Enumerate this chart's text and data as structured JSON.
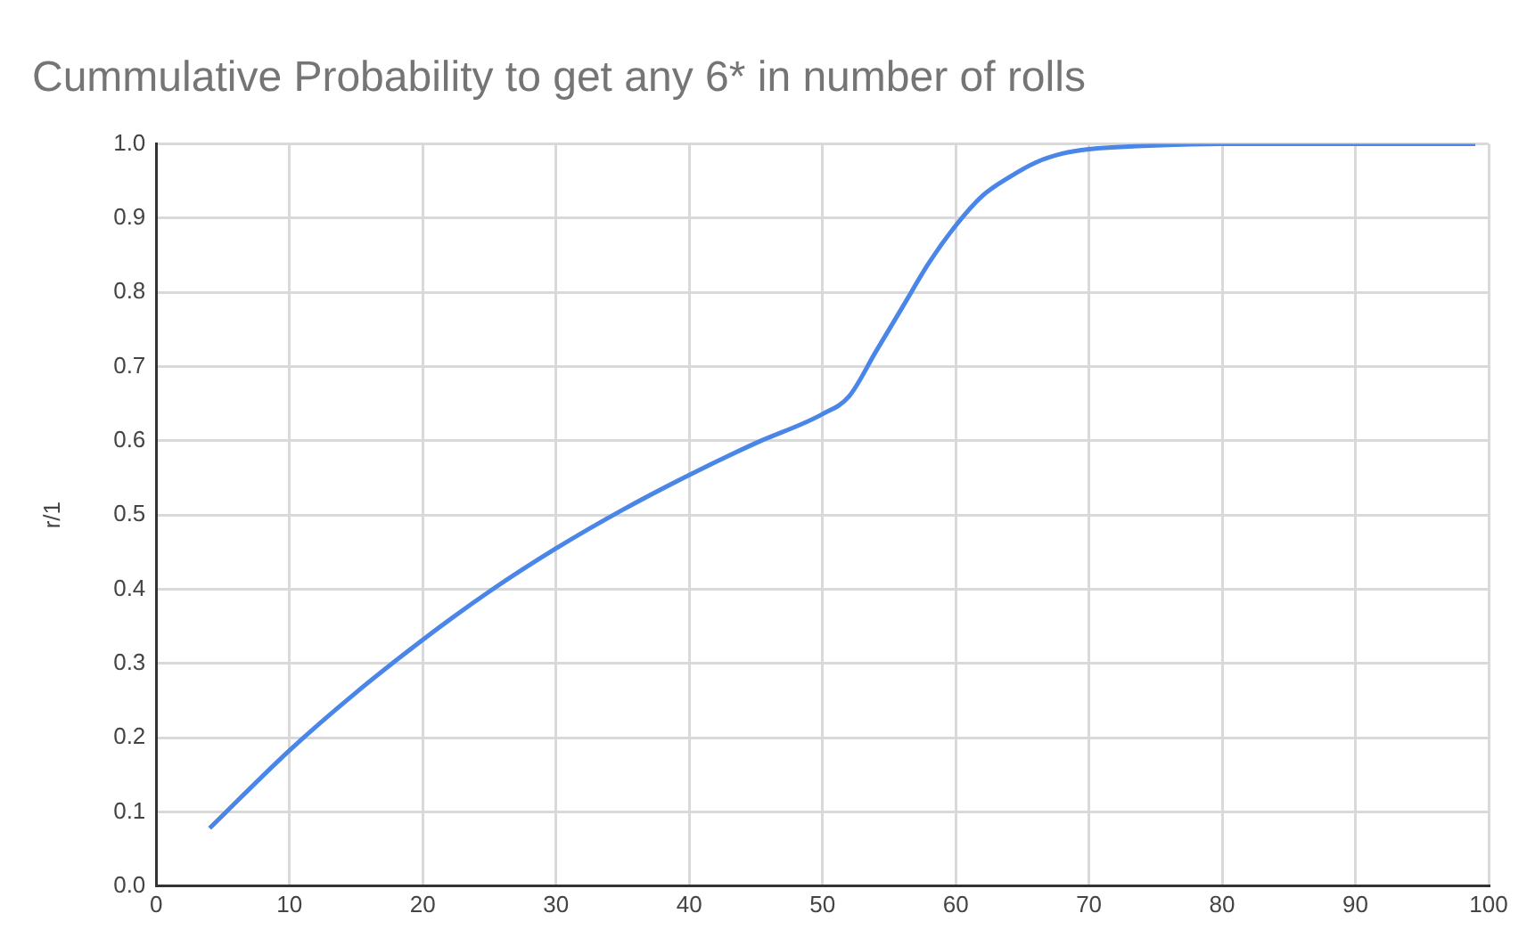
{
  "chart_data": {
    "type": "line",
    "title": "Cummulative Probability to get any 6* in number of rolls",
    "ylabel": "r/1",
    "x": [
      4,
      10,
      15,
      20,
      25,
      30,
      35,
      40,
      45,
      50,
      52,
      54,
      56,
      58,
      60,
      62,
      64,
      66,
      68,
      70,
      75,
      80,
      90,
      99
    ],
    "series": [
      {
        "color": "#4a86e8",
        "values": [
          0.078,
          0.183,
          0.261,
          0.332,
          0.397,
          0.455,
          0.507,
          0.554,
          0.597,
          0.636,
          0.66,
          0.72,
          0.78,
          0.84,
          0.89,
          0.93,
          0.955,
          0.975,
          0.987,
          0.993,
          0.998,
          1.0,
          1.0,
          1.0
        ]
      }
    ],
    "xlim": [
      0,
      100
    ],
    "xticks": [
      0,
      10,
      20,
      30,
      40,
      50,
      60,
      70,
      80,
      90,
      100
    ],
    "ylim": [
      0,
      1
    ],
    "yticks": [
      {
        "value": 0,
        "label": "0.0"
      },
      {
        "value": 0.1,
        "label": "0.1"
      },
      {
        "value": 0.2,
        "label": "0.2"
      },
      {
        "value": 0.3,
        "label": "0.3"
      },
      {
        "value": 0.4,
        "label": "0.4"
      },
      {
        "value": 0.5,
        "label": "0.5"
      },
      {
        "value": 0.6,
        "label": "0.6"
      },
      {
        "value": 0.7,
        "label": "0.7"
      },
      {
        "value": 0.8,
        "label": "0.8"
      },
      {
        "value": 0.9,
        "label": "0.9"
      },
      {
        "value": 1,
        "label": "1.0"
      }
    ],
    "grid": true,
    "legend": false,
    "marker": "none",
    "line_style": "solid"
  }
}
